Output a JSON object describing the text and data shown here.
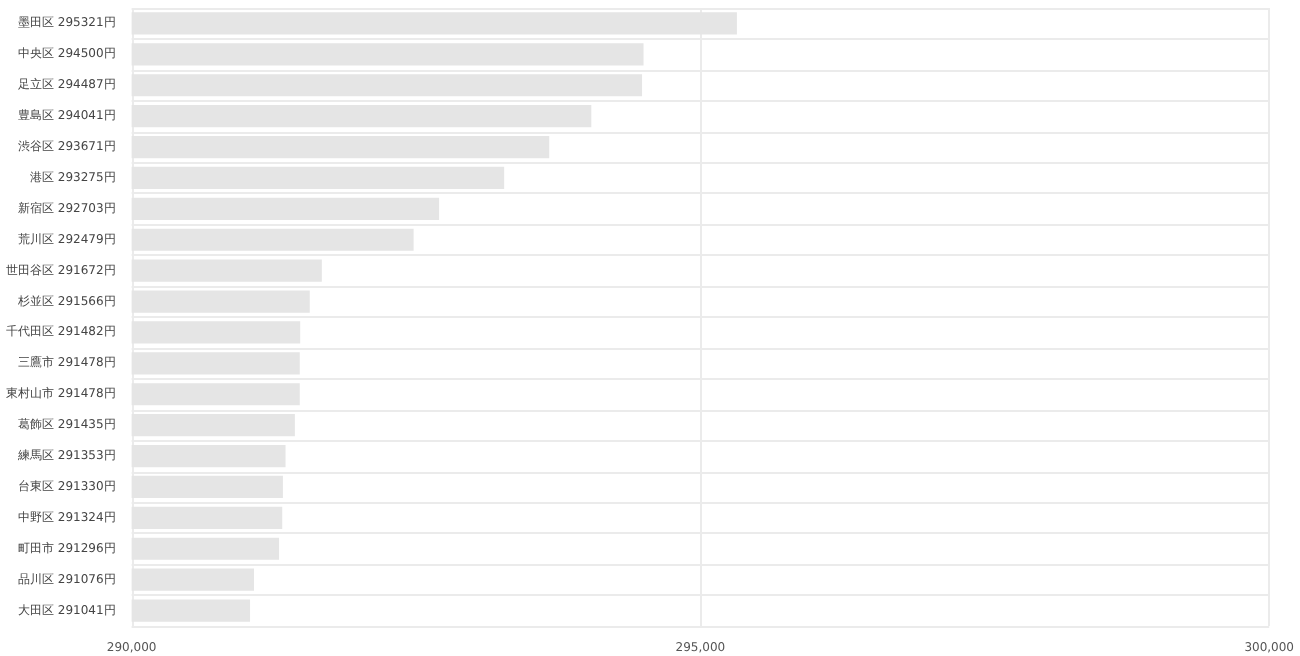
{
  "chart_data": {
    "type": "bar",
    "orientation": "horizontal",
    "categories": [
      "墨田区 295321円",
      "中央区 294500円",
      "足立区 294487円",
      "豊島区 294041円",
      "渋谷区 293671円",
      "港区 293275円",
      "新宿区 292703円",
      "荒川区 292479円",
      "世田谷区 291672円",
      "杉並区 291566円",
      "千代田区 291482円",
      "三鷹市 291478円",
      "東村山市 291478円",
      "葛飾区 291435円",
      "練馬区 291353円",
      "台東区 291330円",
      "中野区 291324円",
      "町田市 291296円",
      "品川区 291076円",
      "大田区 291041円"
    ],
    "values": [
      295321,
      294500,
      294487,
      294041,
      293671,
      293275,
      292703,
      292479,
      291672,
      291566,
      291482,
      291478,
      291478,
      291435,
      291353,
      291330,
      291324,
      291296,
      291076,
      291041
    ],
    "color": "#e5e5e5",
    "xlim": [
      290000,
      300000
    ],
    "xticks": [
      {
        "value": 290000,
        "label": "290,000"
      },
      {
        "value": 295000,
        "label": "295,000"
      },
      {
        "value": 300000,
        "label": "300,000"
      }
    ],
    "grid": true
  }
}
